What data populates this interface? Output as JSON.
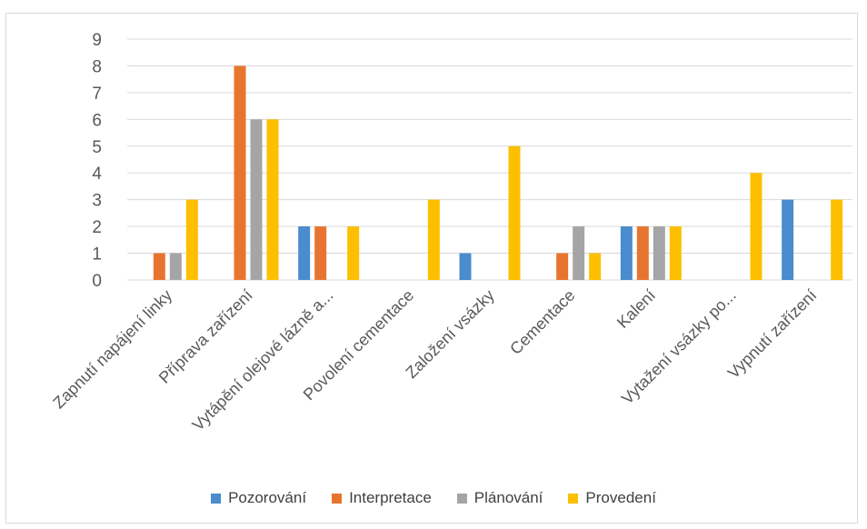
{
  "chart_data": {
    "type": "bar",
    "categories": [
      "Zapnutí napájení linky",
      "Příprava zařízení",
      "Vytápění olejové lázně a...",
      "Povolení cementace",
      "Založení vsázky",
      "Cementace",
      "Kalení",
      "Vytažení vsázky po...",
      "Vypnutí zařízení"
    ],
    "series": [
      {
        "name": "Pozorování",
        "color": "#4a8ccd",
        "values": [
          0,
          0,
          2,
          0,
          1,
          0,
          2,
          0,
          3
        ]
      },
      {
        "name": "Interpretace",
        "color": "#e8752f",
        "values": [
          1,
          8,
          2,
          0,
          0,
          1,
          2,
          0,
          0
        ]
      },
      {
        "name": "Plánování",
        "color": "#a5a5a5",
        "values": [
          1,
          6,
          0,
          0,
          0,
          2,
          2,
          0,
          0
        ]
      },
      {
        "name": "Provedení",
        "color": "#fdbf00",
        "values": [
          3,
          6,
          2,
          3,
          5,
          1,
          2,
          4,
          3
        ]
      }
    ],
    "ylim": [
      0,
      9
    ],
    "yticks": [
      "0",
      "1",
      "2",
      "3",
      "4",
      "5",
      "6",
      "7",
      "8",
      "9"
    ],
    "grid": true,
    "legend_position": "bottom",
    "title": "",
    "xlabel": "",
    "ylabel": ""
  }
}
